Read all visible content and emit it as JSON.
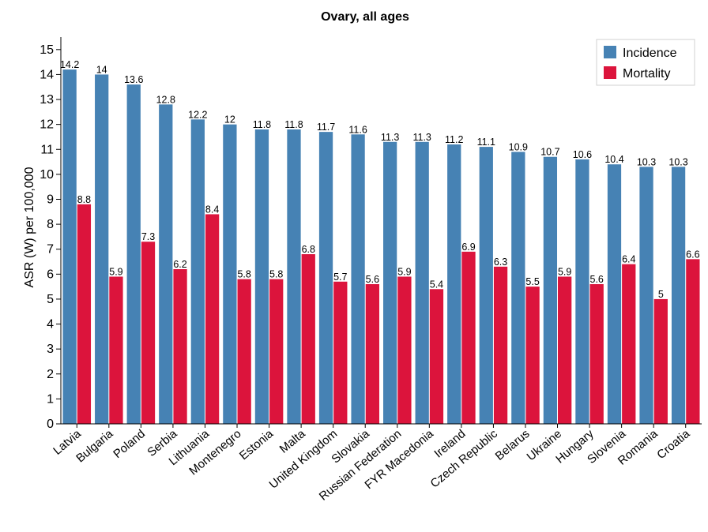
{
  "chart_data": {
    "type": "bar",
    "title": "Ovary, all ages",
    "xlabel": "",
    "ylabel": "ASR (W) per 100,000",
    "ylim": [
      0,
      15.5
    ],
    "yticks": [
      0,
      1,
      2,
      3,
      4,
      5,
      6,
      7,
      8,
      9,
      10,
      11,
      12,
      13,
      14,
      15
    ],
    "grid": false,
    "legend_position": "top-right",
    "categories": [
      "Latvia",
      "Bulgaria",
      "Poland",
      "Serbia",
      "Lithuania",
      "Montenegro",
      "Estonia",
      "Malta",
      "United Kingdom",
      "Slovakia",
      "Russian Federation",
      "FYR Macedonia",
      "Ireland",
      "Czech Republic",
      "Belarus",
      "Ukraine",
      "Hungary",
      "Slovenia",
      "Romania",
      "Croatia"
    ],
    "series": [
      {
        "name": "Incidence",
        "color": "#4682b4",
        "values": [
          14.2,
          14,
          13.6,
          12.8,
          12.2,
          12,
          11.8,
          11.8,
          11.7,
          11.6,
          11.3,
          11.3,
          11.2,
          11.1,
          10.9,
          10.7,
          10.6,
          10.4,
          10.3,
          10.3
        ]
      },
      {
        "name": "Mortality",
        "color": "#dc143c",
        "values": [
          8.8,
          5.9,
          7.3,
          6.2,
          8.4,
          5.8,
          5.8,
          6.8,
          5.7,
          5.6,
          5.9,
          5.4,
          6.9,
          6.3,
          5.5,
          5.9,
          5.6,
          6.4,
          5,
          6.6
        ]
      }
    ]
  }
}
